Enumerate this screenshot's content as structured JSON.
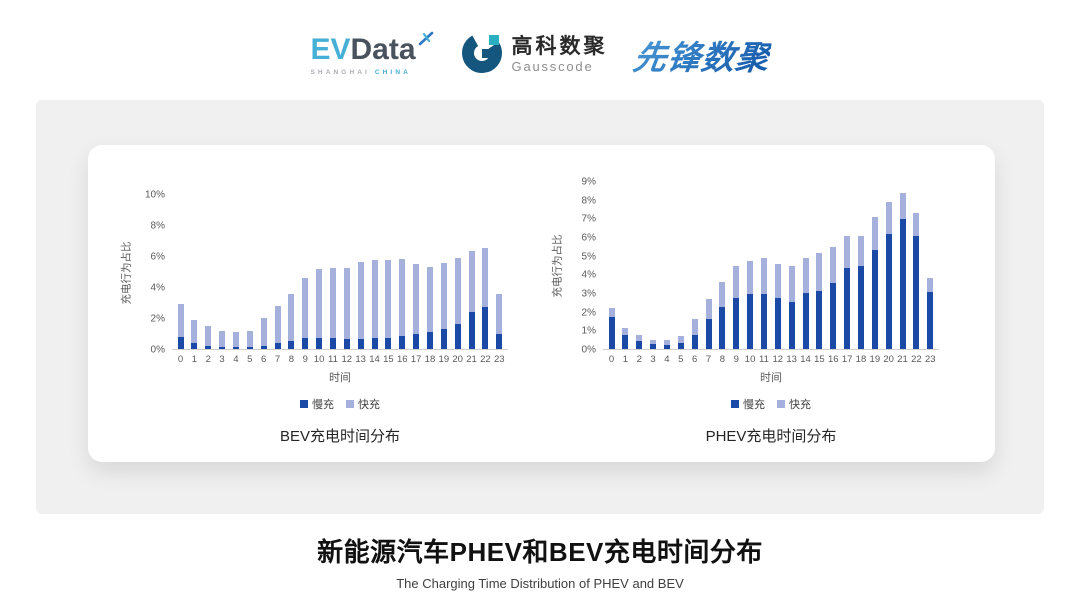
{
  "header": {
    "evdata_logo": {
      "ev": "EV",
      "data": "Data",
      "subtext_left": "SHANGHAI",
      "subtext_right": "CHINA"
    },
    "gausscode_logo": {
      "name_cn": "高科数聚",
      "name_en": "Gausscode"
    },
    "pioneer_logo": {
      "text": "先锋数聚"
    }
  },
  "colors": {
    "slow_charge": "#1A4AA5",
    "fast_charge": "#A6B0DC",
    "panel_bg": "#F0F0F0",
    "evdata_cyan": "#45AFD6",
    "evdata_dark": "#49535E",
    "gausscode_navy": "#15567F",
    "gausscode_teal": "#2AAFC0",
    "pioneer_blue_light": "#4A9BD8",
    "pioneer_blue_dark": "#1A5FAE",
    "axis_text": "#595959"
  },
  "chart_data": [
    {
      "type": "bar",
      "stacked": true,
      "title": "BEV充电时间分布",
      "xlabel": "时间",
      "ylabel": "充电行为占比",
      "legend_position": "bottom",
      "grid": false,
      "ylim": [
        0,
        10
      ],
      "ytick_labels": [
        "0%",
        "2%",
        "4%",
        "6%",
        "8%",
        "10%"
      ],
      "categories": [
        "0",
        "1",
        "2",
        "3",
        "4",
        "5",
        "6",
        "7",
        "8",
        "9",
        "10",
        "11",
        "12",
        "13",
        "14",
        "15",
        "16",
        "17",
        "18",
        "19",
        "20",
        "21",
        "22",
        "23"
      ],
      "series": [
        {
          "name": "慢充",
          "color": "#1A4AA5",
          "values": [
            0.8,
            0.4,
            0.2,
            0.1,
            0.1,
            0.12,
            0.2,
            0.38,
            0.52,
            0.72,
            0.7,
            0.72,
            0.62,
            0.65,
            0.72,
            0.7,
            0.85,
            0.95,
            1.1,
            1.3,
            1.6,
            2.4,
            2.75,
            0.95
          ]
        },
        {
          "name": "快充",
          "color": "#A6B0DC",
          "values": [
            2.1,
            1.5,
            1.3,
            1.1,
            1.0,
            1.08,
            1.8,
            2.42,
            3.08,
            3.88,
            4.5,
            4.53,
            4.63,
            5.0,
            5.08,
            5.1,
            5.0,
            4.55,
            4.25,
            4.3,
            4.3,
            3.95,
            3.8,
            2.6
          ]
        }
      ]
    },
    {
      "type": "bar",
      "stacked": true,
      "title": "PHEV充电时间分布",
      "xlabel": "时间",
      "ylabel": "充电行为占比",
      "legend_position": "bottom",
      "grid": false,
      "ylim": [
        0,
        9
      ],
      "ytick_labels": [
        "0%",
        "1%",
        "2%",
        "3%",
        "4%",
        "5%",
        "6%",
        "7%",
        "8%",
        "9%"
      ],
      "categories": [
        "0",
        "1",
        "2",
        "3",
        "4",
        "5",
        "6",
        "7",
        "8",
        "9",
        "10",
        "11",
        "12",
        "13",
        "14",
        "15",
        "16",
        "17",
        "18",
        "19",
        "20",
        "21",
        "22",
        "23"
      ],
      "series": [
        {
          "name": "慢充",
          "color": "#1A4AA5",
          "values": [
            1.75,
            0.77,
            0.45,
            0.27,
            0.23,
            0.3,
            0.75,
            1.6,
            2.25,
            2.75,
            2.95,
            2.95,
            2.75,
            2.55,
            3.0,
            3.15,
            3.55,
            4.35,
            4.5,
            5.35,
            6.2,
            7.0,
            6.1,
            3.05
          ]
        },
        {
          "name": "快充",
          "color": "#A6B0DC",
          "values": [
            0.45,
            0.35,
            0.28,
            0.22,
            0.25,
            0.38,
            0.85,
            1.1,
            1.35,
            1.7,
            1.8,
            1.95,
            1.85,
            1.9,
            1.9,
            2.05,
            1.95,
            1.75,
            1.6,
            1.75,
            1.7,
            1.4,
            1.25,
            0.8
          ]
        }
      ]
    }
  ],
  "footer": {
    "title": "新能源汽车PHEV和BEV充电时间分布",
    "subtitle": "The Charging Time Distribution of PHEV and BEV"
  }
}
